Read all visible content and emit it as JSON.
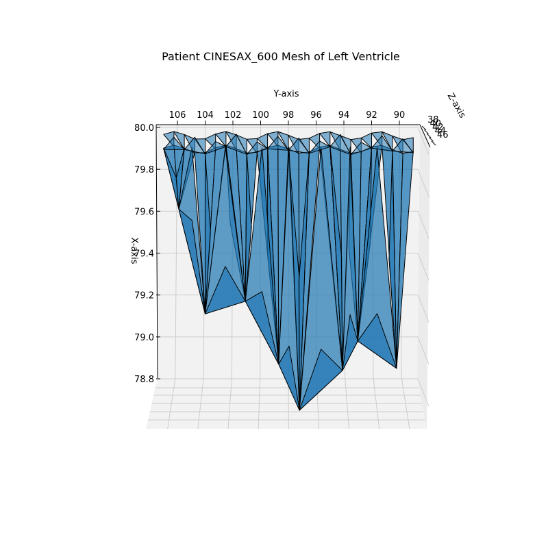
{
  "chart_data": {
    "type": "mesh3d",
    "title": "Patient CINESAX_600 Mesh of Left Ventricle",
    "xlabel": "X-axis",
    "ylabel": "Y-axis",
    "zlabel": "Z-axis",
    "xlim": [
      78.8,
      80.0
    ],
    "ylim": [
      88.8,
      107.3
    ],
    "zlim": [
      38,
      46
    ],
    "x_ticks": [
      "80.0",
      "79.8",
      "79.6",
      "79.4",
      "79.2",
      "79.0",
      "78.8"
    ],
    "y_ticks": [
      "106",
      "104",
      "102",
      "100",
      "98",
      "96",
      "94",
      "92",
      "90"
    ],
    "z_ticks": [
      "38",
      "40",
      "42",
      "44",
      "46"
    ],
    "grid": true,
    "colors": {
      "face": "#1f77b4",
      "edge": "#000000",
      "pane": "#f2f2f2",
      "grid": "#cccccc"
    },
    "apex_vertices": [
      {
        "y": 97.2,
        "x": 78.65
      },
      {
        "y": 98.7,
        "x": 78.87
      },
      {
        "y": 94.1,
        "x": 78.84
      },
      {
        "y": 90.2,
        "x": 78.85
      },
      {
        "y": 104.0,
        "x": 79.11
      },
      {
        "y": 101.1,
        "x": 79.17
      },
      {
        "y": 93.0,
        "x": 78.98
      },
      {
        "y": 105.9,
        "x": 79.61
      }
    ]
  }
}
